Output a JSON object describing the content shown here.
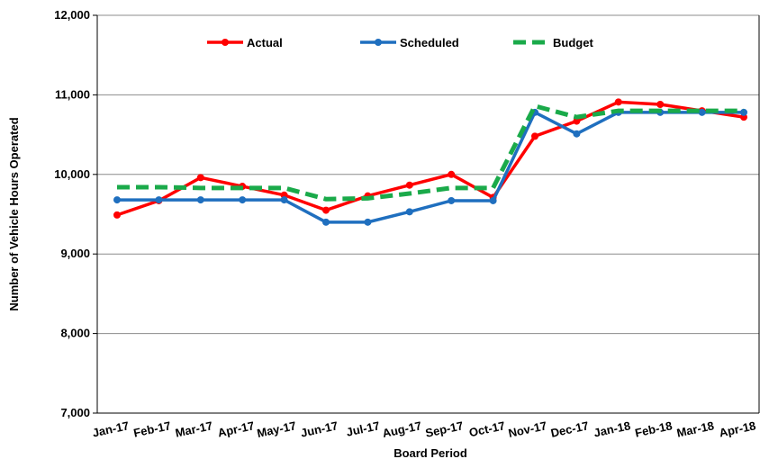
{
  "chart_data": {
    "type": "line",
    "x_label": "Board Period",
    "y_label": "Number of Vehicle Hours Operated",
    "categories": [
      "Jan-17",
      "Feb-17",
      "Mar-17",
      "Apr-17",
      "May-17",
      "Jun-17",
      "Jul-17",
      "Aug-17",
      "Sep-17",
      "Oct-17",
      "Nov-17",
      "Dec-17",
      "Jan-18",
      "Feb-18",
      "Mar-18",
      "Apr-18"
    ],
    "series": [
      {
        "name": "Actual",
        "color": "#ff0000",
        "dashed": false,
        "markers": true,
        "values": [
          9490,
          9670,
          9960,
          9850,
          9740,
          9550,
          9730,
          9865,
          10000,
          9710,
          10480,
          10670,
          10910,
          10880,
          10800,
          10720
        ]
      },
      {
        "name": "Scheduled",
        "color": "#1f6fbf",
        "dashed": false,
        "markers": true,
        "values": [
          9680,
          9680,
          9680,
          9680,
          9680,
          9400,
          9400,
          9530,
          9670,
          9670,
          10780,
          10510,
          10780,
          10780,
          10780,
          10780
        ]
      },
      {
        "name": "Budget",
        "color": "#1aaa4a",
        "dashed": true,
        "markers": false,
        "values": [
          9840,
          9840,
          9830,
          9830,
          9830,
          9690,
          9700,
          9760,
          9830,
          9830,
          10860,
          10720,
          10800,
          10800,
          10800,
          10800
        ]
      }
    ],
    "ylim": [
      7000,
      12000
    ],
    "yticks": [
      {
        "value": 7000,
        "label": "7,000"
      },
      {
        "value": 8000,
        "label": "8,000"
      },
      {
        "value": 9000,
        "label": "9,000"
      },
      {
        "value": 10000,
        "label": "10,000"
      },
      {
        "value": 11000,
        "label": "11,000"
      },
      {
        "value": 12000,
        "label": "12,000"
      }
    ],
    "grid": true,
    "legend": "top"
  }
}
